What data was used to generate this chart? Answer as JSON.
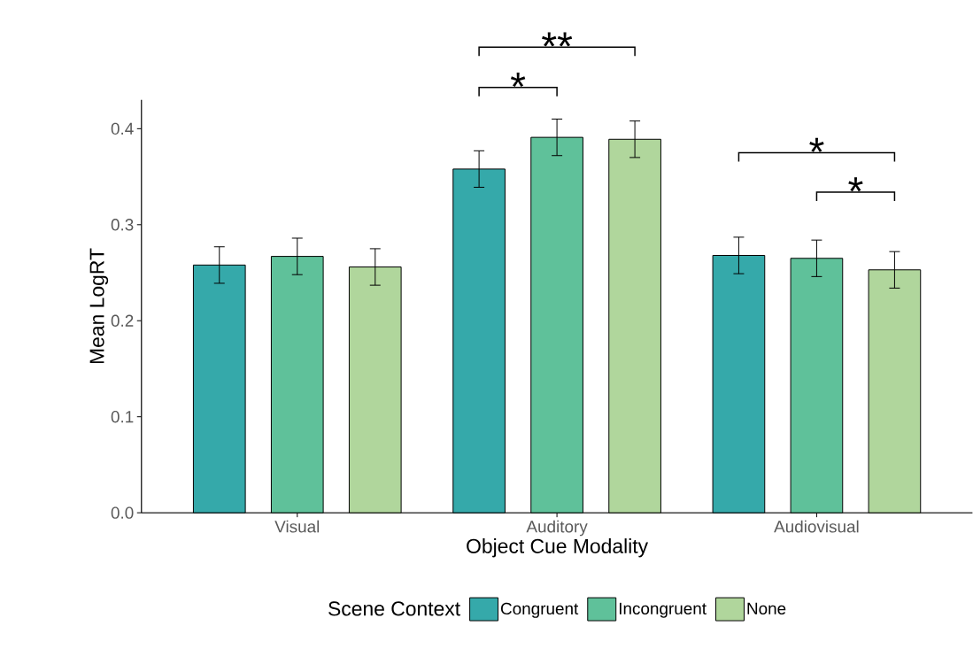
{
  "chart_data": {
    "type": "bar",
    "xlabel": "Object Cue Modality",
    "ylabel": "Mean LogRT",
    "legend_title": "Scene Context",
    "categories": [
      "Visual",
      "Auditory",
      "Audiovisual"
    ],
    "series": [
      {
        "name": "Congruent",
        "color": "#35a9aa",
        "values": [
          0.258,
          0.358,
          0.268
        ],
        "errors": [
          0.019,
          0.019,
          0.019
        ]
      },
      {
        "name": "Incongruent",
        "color": "#5fc19a",
        "values": [
          0.267,
          0.391,
          0.265
        ],
        "errors": [
          0.019,
          0.019,
          0.019
        ]
      },
      {
        "name": "None",
        "color": "#b0d69c",
        "values": [
          0.256,
          0.389,
          0.253
        ],
        "errors": [
          0.019,
          0.019,
          0.019
        ]
      }
    ],
    "ylim": [
      0,
      0.43
    ],
    "yticks": [
      {
        "value": 0,
        "label": "0.0"
      },
      {
        "value": 0.1,
        "label": "0.1"
      },
      {
        "value": 0.2,
        "label": "0.2"
      },
      {
        "value": 0.3,
        "label": "0.3"
      },
      {
        "value": 0.4,
        "label": "0.4"
      }
    ],
    "legend": "bottom",
    "grid": false,
    "annotations": [
      "**",
      "*",
      "*",
      "*"
    ]
  }
}
